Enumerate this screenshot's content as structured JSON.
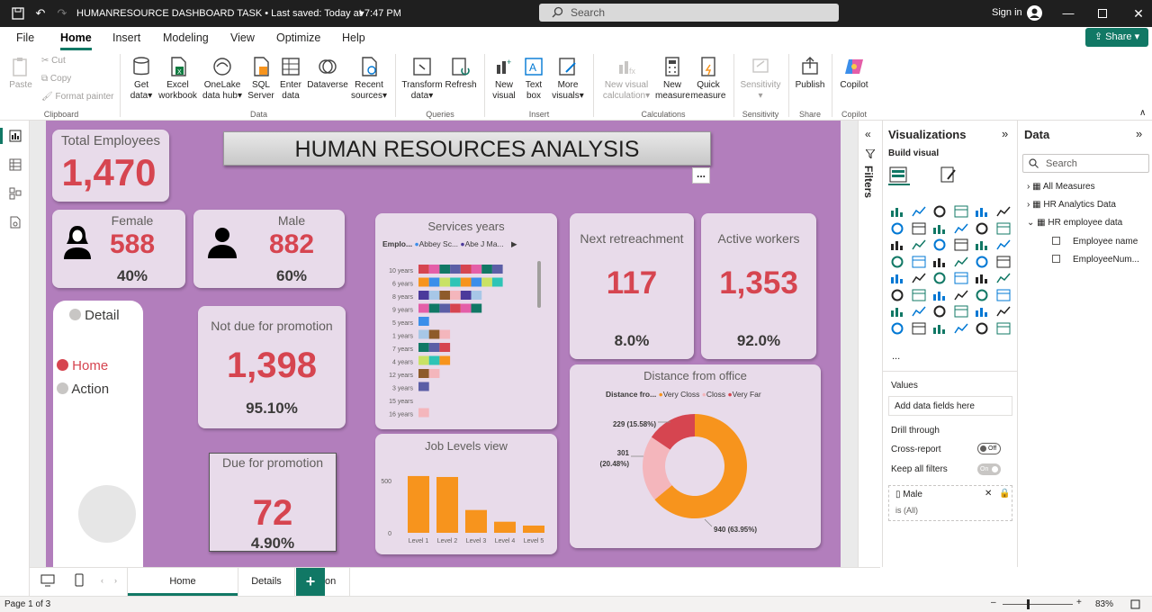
{
  "titlebar": {
    "title": "HUMANRESOURCE DASHBOARD TASK • Last saved: Today at 7:47 PM",
    "search_placeholder": "Search",
    "signin": "Sign in"
  },
  "menu": [
    "File",
    "Home",
    "Insert",
    "Modeling",
    "View",
    "Optimize",
    "Help"
  ],
  "share_label": "Share",
  "ribbon": {
    "paste": "Paste",
    "cut": "Cut",
    "copy": "Copy",
    "format_painter": "Format painter",
    "get_data": [
      "Get",
      "data"
    ],
    "excel": [
      "Excel",
      "workbook"
    ],
    "onelake": [
      "OneLake",
      "data hub"
    ],
    "sql": [
      "SQL",
      "Server"
    ],
    "enter": [
      "Enter",
      "data"
    ],
    "dataverse": "Dataverse",
    "recent": [
      "Recent",
      "sources"
    ],
    "transform": [
      "Transform",
      "data"
    ],
    "refresh": "Refresh",
    "new_visual": [
      "New",
      "visual"
    ],
    "text_box": [
      "Text",
      "box"
    ],
    "more_visuals": [
      "More",
      "visuals"
    ],
    "new_visual_calc": [
      "New visual",
      "calculation"
    ],
    "new_measure": [
      "New",
      "measure"
    ],
    "quick_measure": [
      "Quick",
      "measure"
    ],
    "sensitivity": "Sensitivity",
    "publish": "Publish",
    "copilot": "Copilot",
    "groups": [
      "Clipboard",
      "Data",
      "Queries",
      "Insert",
      "Calculations",
      "Sensitivity",
      "Share",
      "Copilot"
    ]
  },
  "report": {
    "title": "HUMAN RESOURCES ANALYSIS",
    "total_employees": {
      "label": "Total Employees",
      "value": "1,470"
    },
    "female": {
      "label": "Female",
      "value": "588",
      "pct": "40%"
    },
    "male": {
      "label": "Male",
      "value": "882",
      "pct": "60%"
    },
    "nav": {
      "detail": "Detail",
      "home": "Home",
      "action": "Action"
    },
    "not_due": {
      "label": "Not due for promotion",
      "value": "1,398",
      "pct": "95.10%"
    },
    "due": {
      "label": "Due for promotion",
      "value": "72",
      "pct": "4.90%"
    },
    "retreachment": {
      "label": "Next retreachment",
      "value": "117",
      "pct": "8.0%"
    },
    "active": {
      "label": "Active workers",
      "value": "1,353",
      "pct": "92.0%"
    },
    "services": {
      "title": "Services years",
      "legend_label": "Emplo...",
      "legend_items": [
        "Abbey Sc...",
        "Abe J Ma..."
      ]
    },
    "more_options": "..."
  },
  "chart_data": [
    {
      "type": "bar",
      "title": "Services years",
      "orientation": "horizontal-stacked",
      "categories": [
        "10 years",
        "6 years",
        "8 years",
        "9 years",
        "5 years",
        "1 years",
        "7 years",
        "4 years",
        "12 years",
        "3 years",
        "15 years",
        "16 years"
      ],
      "segments": [
        8,
        8,
        6,
        6,
        1,
        3,
        3,
        3,
        2,
        1,
        0,
        1
      ]
    },
    {
      "type": "bar",
      "title": "Job Levels view",
      "categories": [
        "Level 1",
        "Level 2",
        "Level 3",
        "Level 4",
        "Level 5"
      ],
      "values": [
        543,
        534,
        218,
        106,
        69
      ],
      "yticks": [
        "0",
        "500"
      ],
      "ylim": [
        0,
        620
      ],
      "color": "#f7941d"
    },
    {
      "type": "pie",
      "title": "Distance from office",
      "legend_label": "Distance fro...",
      "labels": [
        "Very Closs",
        "Closs",
        "Very Far"
      ],
      "values": [
        940,
        301,
        229
      ],
      "display_labels": [
        "940 (63.95%)",
        "301 (20.48%)",
        "229 (15.58%)"
      ],
      "colors": [
        "#f7941d",
        "#f4b6bc",
        "#d64550"
      ]
    }
  ],
  "filters_label": "Filters",
  "viz": {
    "title": "Visualizations",
    "build": "Build visual",
    "values": "Values",
    "add_fields": "Add data fields here",
    "drill": "Drill through",
    "cross_report": "Cross-report",
    "cross_state": "Off",
    "keep_filters": "Keep all filters",
    "keep_state": "On",
    "filter_field": "Male",
    "filter_value": "is (All)",
    "more": "..."
  },
  "data_pane": {
    "title": "Data",
    "search_placeholder": "Search",
    "tables": [
      "All Measures",
      "HR Analytics Data",
      "HR employee data"
    ],
    "fields": [
      "Employee name",
      "EmployeeNum..."
    ]
  },
  "tabs": [
    "Home",
    "Details",
    "Action"
  ],
  "add_tab": "+",
  "status": {
    "page": "Page 1 of 3",
    "zoom": "83%"
  }
}
